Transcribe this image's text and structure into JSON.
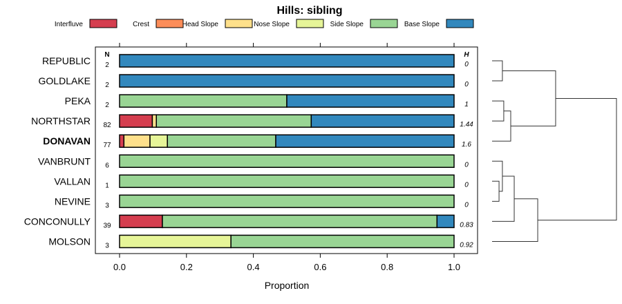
{
  "chart_data": {
    "type": "bar",
    "stacked": true,
    "orientation": "horizontal",
    "title": "Hills: sibling",
    "xlabel": "Proportion",
    "xlim": [
      0,
      1
    ],
    "xticks": [
      "0.0",
      "0.2",
      "0.4",
      "0.6",
      "0.8",
      "1.0"
    ],
    "legend": {
      "position": "top",
      "entries": [
        "Interfluve",
        "Crest",
        "Head Slope",
        "Nose Slope",
        "Side Slope",
        "Base Slope"
      ]
    },
    "colors": [
      "#D53E4F",
      "#FC8D59",
      "#FEE08B",
      "#E6F598",
      "#99D594",
      "#3288BD"
    ],
    "n_header": "N",
    "h_header": "H",
    "categories": [
      "REPUBLIC",
      "GOLDLAKE",
      "PEKA",
      "NORTHSTAR",
      "DONAVAN",
      "VANBRUNT",
      "VALLAN",
      "NEVINE",
      "CONCONULLY",
      "MOLSON"
    ],
    "highlight": "DONAVAN",
    "n": [
      "2",
      "2",
      "2",
      "82",
      "77",
      "6",
      "1",
      "3",
      "39",
      "3"
    ],
    "h": [
      "0",
      "0",
      "1",
      "1.44",
      "1.6",
      "0",
      "0",
      "0",
      "0.83",
      "0.92"
    ],
    "series": [
      {
        "name": "Interfluve",
        "values": [
          0,
          0,
          0,
          0.098,
          0.013,
          0,
          0,
          0,
          0.128,
          0
        ]
      },
      {
        "name": "Crest",
        "values": [
          0,
          0,
          0,
          0,
          0,
          0,
          0,
          0,
          0,
          0
        ]
      },
      {
        "name": "Head Slope",
        "values": [
          0,
          0,
          0,
          0.012,
          0.078,
          0,
          0,
          0,
          0,
          0
        ]
      },
      {
        "name": "Nose Slope",
        "values": [
          0,
          0,
          0,
          0,
          0.052,
          0,
          0,
          0,
          0,
          0.333
        ]
      },
      {
        "name": "Side Slope",
        "values": [
          0,
          0,
          0.5,
          0.463,
          0.324,
          1,
          1,
          1,
          0.821,
          0.667
        ]
      },
      {
        "name": "Base Slope",
        "values": [
          1,
          1,
          0.5,
          0.427,
          0.533,
          0,
          0,
          0,
          0.051,
          0
        ]
      }
    ],
    "dendrogram": {
      "merges": [
        {
          "a": 0,
          "b": 1,
          "height": 0.083
        },
        {
          "a": 2,
          "b": 3,
          "height": 0.094
        },
        {
          "a": "m1",
          "b": 4,
          "height": 0.15
        },
        {
          "a": "m0",
          "b": "m2",
          "height": 0.511
        },
        {
          "a": 6,
          "b": 7,
          "height": 0.056
        },
        {
          "a": 5,
          "b": "m4",
          "height": 0.083
        },
        {
          "a": "m5",
          "b": 8,
          "height": 0.178
        },
        {
          "a": "m6",
          "b": 9,
          "height": 0.367
        },
        {
          "a": "m3",
          "b": "m7",
          "height": 1.0
        }
      ]
    }
  }
}
